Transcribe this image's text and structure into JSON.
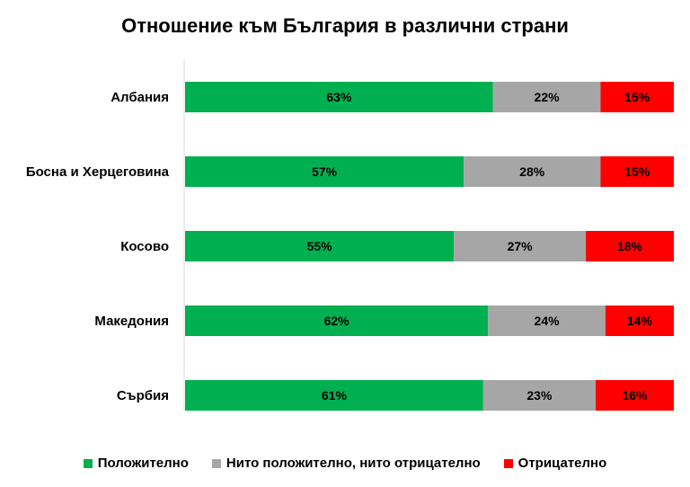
{
  "chart_data": {
    "type": "bar",
    "orientation": "horizontal",
    "stacked": true,
    "percent_stacked": true,
    "title": "Отношение към България в различни страни",
    "categories": [
      "Албания",
      "Босна и Херцеговина",
      "Косово",
      "Македония",
      "Сърбия"
    ],
    "series": [
      {
        "name": "Положително",
        "color": "#00b050",
        "values": [
          63,
          57,
          55,
          62,
          61
        ]
      },
      {
        "name": "Нито положително, нито отрицателно",
        "color": "#a6a6a6",
        "values": [
          22,
          28,
          27,
          24,
          23
        ]
      },
      {
        "name": "Отрицателно",
        "color": "#ff0000",
        "values": [
          15,
          15,
          18,
          14,
          16
        ]
      }
    ],
    "value_suffix": "%",
    "xlim": [
      0,
      100
    ],
    "grid": false,
    "legend_position": "bottom"
  }
}
